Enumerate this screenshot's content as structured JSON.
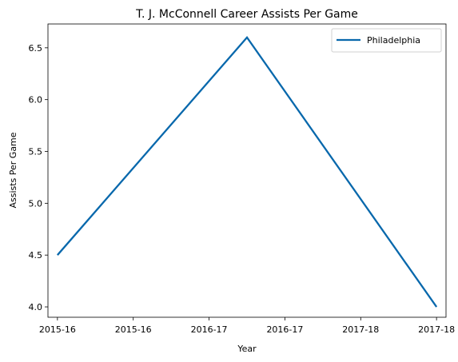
{
  "chart_data": {
    "type": "line",
    "title": "T. J. McConnell Career Assists Per Game",
    "xlabel": "Year",
    "ylabel": "Assists Per Game",
    "x": [
      0,
      1,
      2
    ],
    "xlim": [
      -0.05,
      2.05
    ],
    "x_ticks": [
      {
        "value": 0.0,
        "label": "2015-16"
      },
      {
        "value": 0.4,
        "label": "2015-16"
      },
      {
        "value": 0.8,
        "label": "2016-17"
      },
      {
        "value": 1.2,
        "label": "2016-17"
      },
      {
        "value": 1.6,
        "label": "2017-18"
      },
      {
        "value": 2.0,
        "label": "2017-18"
      }
    ],
    "ylim": [
      3.9,
      6.73
    ],
    "y_ticks": [
      4.0,
      4.5,
      5.0,
      5.5,
      6.0,
      6.5
    ],
    "y_tick_labels": [
      "4.0",
      "4.5",
      "5.0",
      "5.5",
      "6.0",
      "6.5"
    ],
    "grid": false,
    "legend_position": "top-right",
    "series": [
      {
        "name": "Philadelphia",
        "color": "#0868ac",
        "values": [
          4.5,
          6.6,
          4.0
        ]
      }
    ]
  }
}
